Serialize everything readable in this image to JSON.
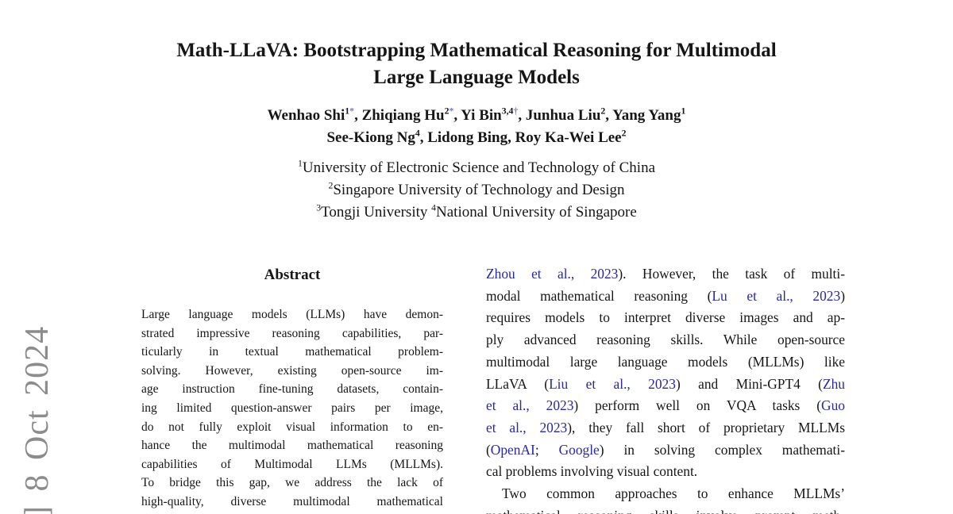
{
  "page": {
    "colors": {
      "ink": "#161616",
      "link": "#2727a8",
      "footnote_mark": "#7577d8",
      "watermark": "#8c8c8c",
      "background": "#ffffff"
    }
  },
  "watermark": {
    "text": "] 8 Oct 2024"
  },
  "title": {
    "lines": [
      "Math-LLaVA: Bootstrapping Mathematical Reasoning for Multimodal",
      "Large Language Models"
    ]
  },
  "authors": {
    "lines": [
      {
        "segs": [
          {
            "t": "Wenhao Shi"
          },
          {
            "t": "1",
            "sup": true
          },
          {
            "t": "*",
            "sup": true,
            "c": "mark"
          },
          {
            "t": ", Zhiqiang Hu"
          },
          {
            "t": "2",
            "sup": true
          },
          {
            "t": "*",
            "sup": true,
            "c": "mark"
          },
          {
            "t": ", Yi Bin"
          },
          {
            "t": "3,4",
            "sup": true
          },
          {
            "t": "†",
            "sup": true,
            "c": "mark"
          },
          {
            "t": ", Junhua Liu"
          },
          {
            "t": "2",
            "sup": true
          },
          {
            "t": ", Yang Yang"
          },
          {
            "t": "1",
            "sup": true
          }
        ]
      },
      {
        "segs": [
          {
            "t": "See-Kiong Ng"
          },
          {
            "t": "4",
            "sup": true
          },
          {
            "t": ", Lidong Bing, Roy Ka-Wei Lee"
          },
          {
            "t": "2",
            "sup": true
          }
        ]
      }
    ]
  },
  "affiliations": {
    "lines": [
      {
        "segs": [
          {
            "t": "1",
            "sup": true
          },
          {
            "t": "University of Electronic Science and Technology of China"
          }
        ]
      },
      {
        "segs": [
          {
            "t": "2",
            "sup": true
          },
          {
            "t": "Singapore University of Technology and Design"
          }
        ]
      },
      {
        "segs": [
          {
            "t": "3",
            "sup": true
          },
          {
            "t": "Tongji University "
          },
          {
            "t": "4",
            "sup": true
          },
          {
            "t": "National University of Singapore"
          }
        ]
      }
    ]
  },
  "abstract": {
    "heading": "Abstract",
    "lines": [
      {
        "segs": [
          {
            "t": "Large language models (LLMs) have demon-"
          }
        ]
      },
      {
        "segs": [
          {
            "t": "strated impressive reasoning capabilities, par-"
          }
        ]
      },
      {
        "segs": [
          {
            "t": "ticularly in textual mathematical problem-"
          }
        ]
      },
      {
        "segs": [
          {
            "t": "solving. However, existing open-source im-"
          }
        ]
      },
      {
        "segs": [
          {
            "t": "age instruction fine-tuning datasets, contain-"
          }
        ]
      },
      {
        "segs": [
          {
            "t": "ing limited question-answer pairs per image,"
          }
        ]
      },
      {
        "segs": [
          {
            "t": "do not fully exploit visual information to en-"
          }
        ]
      },
      {
        "segs": [
          {
            "t": "hance the multimodal mathematical reasoning"
          }
        ]
      },
      {
        "segs": [
          {
            "t": "capabilities of Multimodal LLMs (MLLMs)."
          }
        ]
      },
      {
        "segs": [
          {
            "t": "To bridge this gap, we address the lack of"
          }
        ]
      },
      {
        "segs": [
          {
            "t": "high-quality, diverse multimodal mathematical"
          }
        ]
      }
    ]
  },
  "intro": {
    "lines": [
      {
        "segs": [
          {
            "t": "Zhou et al., 2023",
            "c": "link"
          },
          {
            "t": "). However, the task of multi-"
          }
        ]
      },
      {
        "segs": [
          {
            "t": "modal mathematical reasoning ("
          },
          {
            "t": "Lu et al., 2023",
            "c": "link"
          },
          {
            "t": ")"
          }
        ]
      },
      {
        "segs": [
          {
            "t": "requires models to interpret diverse images and ap-"
          }
        ]
      },
      {
        "segs": [
          {
            "t": "ply advanced reasoning skills. While open-source"
          }
        ]
      },
      {
        "segs": [
          {
            "t": "multimodal large language models (MLLMs) like"
          }
        ]
      },
      {
        "segs": [
          {
            "t": "LLaVA ("
          },
          {
            "t": "Liu et al., 2023",
            "c": "link"
          },
          {
            "t": ") and Mini-GPT4 ("
          },
          {
            "t": "Zhu",
            "c": "link"
          }
        ]
      },
      {
        "segs": [
          {
            "t": "et al., 2023",
            "c": "link"
          },
          {
            "t": ") perform well on VQA tasks ("
          },
          {
            "t": "Guo",
            "c": "link"
          }
        ]
      },
      {
        "segs": [
          {
            "t": "et al., 2023",
            "c": "link"
          },
          {
            "t": "), they fall short of proprietary MLLMs"
          }
        ]
      },
      {
        "segs": [
          {
            "t": "("
          },
          {
            "t": "OpenAI",
            "c": "link"
          },
          {
            "t": "; "
          },
          {
            "t": "Google",
            "c": "link"
          },
          {
            "t": ") in solving complex mathemati-"
          }
        ]
      },
      {
        "segs": [
          {
            "t": "cal problems involving visual content."
          }
        ],
        "end": true
      },
      {
        "segs": [
          {
            "t": "Two common approaches to enhance MLLMs’"
          }
        ],
        "indent": true
      },
      {
        "segs": [
          {
            "t": "mathematical reasoning skills involve prompt meth-"
          }
        ]
      }
    ]
  }
}
